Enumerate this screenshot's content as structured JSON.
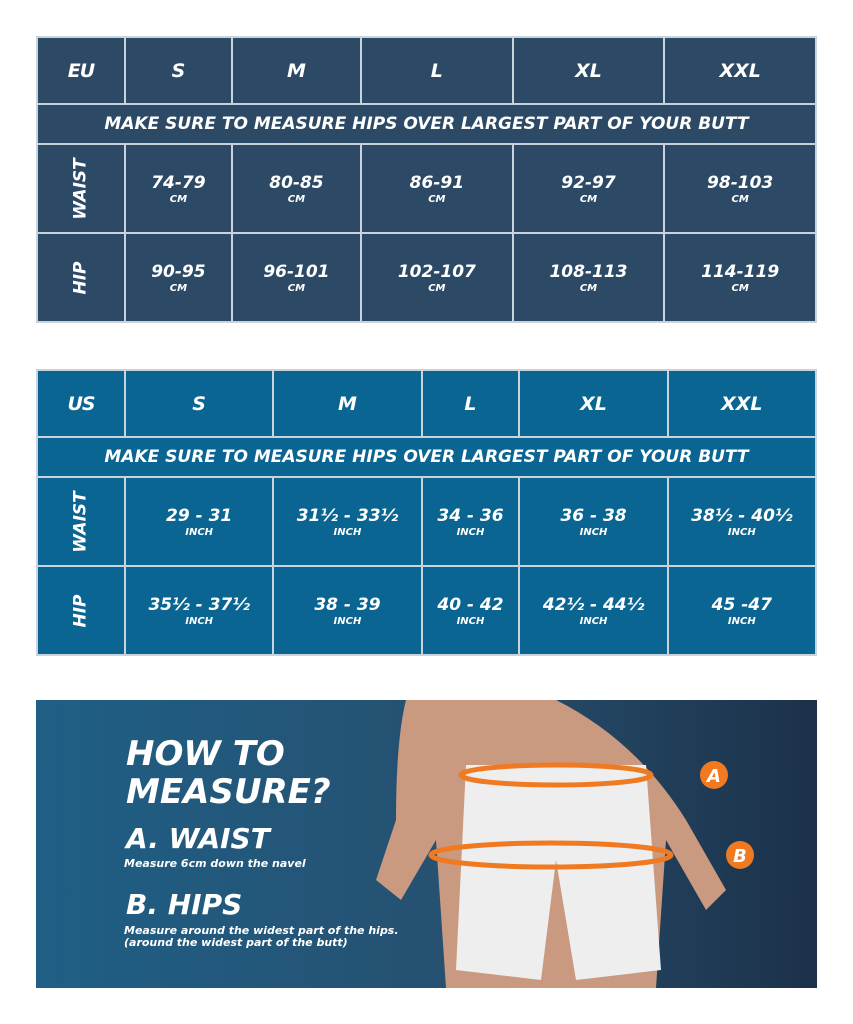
{
  "sizes": [
    "S",
    "M",
    "L",
    "XL",
    "XXL"
  ],
  "banner": "MAKE SURE TO MEASURE HIPS OVER LARGEST PART OF YOUR BUTT",
  "row_labels": {
    "waist": "WAIST",
    "hip": "HIP"
  },
  "eu": {
    "label": "EU",
    "unit": "CM",
    "waist": [
      "74-79",
      "80-85",
      "86-91",
      "92-97",
      "98-103"
    ],
    "hip": [
      "90-95",
      "96-101",
      "102-107",
      "108-113",
      "114-119"
    ]
  },
  "us": {
    "label": "US",
    "unit": "INCH",
    "waist": [
      "29 - 31",
      "31½ - 33½",
      "34 - 36",
      "36 - 38",
      "38½ - 40½"
    ],
    "hip": [
      "35½ - 37½",
      "38 - 39",
      "40 - 42",
      "42½ - 44½",
      "45 -47"
    ]
  },
  "howto": {
    "title1": "HOW TO",
    "title2": "MEASURE?",
    "a_title": "A. WAIST",
    "a_desc": "Measure 6cm down the navel",
    "b_title": "B. HIPS",
    "b_desc1": "Measure around the widest part of the hips.",
    "b_desc2": "(around the widest part of the butt)",
    "marker_a": "A",
    "marker_b": "B"
  },
  "colors": {
    "eu_bg": "#2c4a66",
    "us_bg": "#0a6592",
    "ring": "#f07a22"
  }
}
